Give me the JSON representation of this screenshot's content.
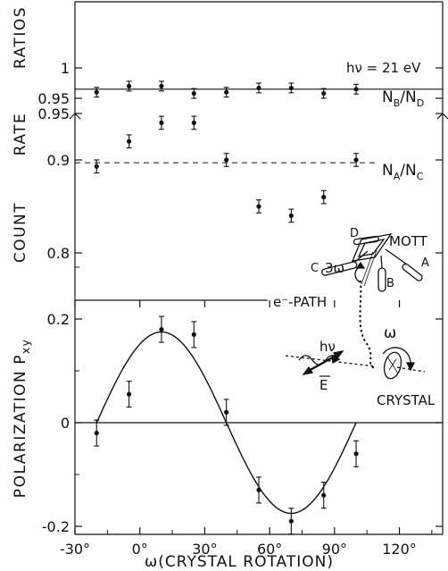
{
  "chart_data": [
    {
      "type": "scatter",
      "panel": "top",
      "ylabel_line1": "RATIOS",
      "ylabel_line2a": "COUNT",
      "ylabel_line2b": "RATE",
      "energy_label": "hν = 21 eV",
      "upper_segment": {
        "ticks": [
          "1",
          "0.95"
        ],
        "series": [
          {
            "name": "N_B/N_D",
            "name_main": "N",
            "name_sub1": "B",
            "name_sep": "/N",
            "name_sub2": "D",
            "reference_line": 0.965,
            "x": [
              -20,
              -5,
              10,
              25,
              40,
              55,
              70,
              85,
              100
            ],
            "y": [
              0.96,
              0.97,
              0.97,
              0.958,
              0.96,
              0.967,
              0.967,
              0.958,
              0.965
            ],
            "err": [
              0.008,
              0.008,
              0.008,
              0.008,
              0.008,
              0.008,
              0.008,
              0.008,
              0.008
            ]
          }
        ]
      },
      "lower_segment": {
        "ticks": [
          "0.95",
          "0.9",
          "0.8"
        ],
        "series": [
          {
            "name": "N_A/N_C",
            "name_main": "N",
            "name_sub1": "A",
            "name_sep": "/N",
            "name_sub2": "C",
            "reference_line": 0.897,
            "x": [
              -20,
              -5,
              10,
              25,
              40,
              55,
              70,
              85,
              100
            ],
            "y": [
              0.893,
              0.92,
              0.94,
              0.94,
              0.9,
              0.85,
              0.84,
              0.86,
              0.9
            ],
            "err": [
              0.007,
              0.007,
              0.007,
              0.007,
              0.007,
              0.007,
              0.007,
              0.007,
              0.007
            ]
          }
        ]
      }
    },
    {
      "type": "scatter",
      "panel": "bottom",
      "ylabel": "POLARIZATION",
      "ylabel_sym": "P",
      "ylabel_sub": "xy",
      "xlabel": "ω(CRYSTAL ROTATION)",
      "xlim": [
        -30,
        140
      ],
      "ylim": [
        -0.29,
        0.37
      ],
      "x_ticks": [
        "-30°",
        "0°",
        "30°",
        "60°",
        "90°",
        "120°"
      ],
      "y_ticks": [
        "0.2",
        "0",
        "-0.2"
      ],
      "series": [
        {
          "name": "P_xy",
          "x": [
            -20,
            -5,
            10,
            25,
            40,
            55,
            70,
            85,
            100
          ],
          "y": [
            -0.02,
            0.055,
            0.18,
            0.17,
            0.02,
            -0.13,
            -0.19,
            -0.14,
            -0.06
          ],
          "err": [
            0.025,
            0.025,
            0.025,
            0.025,
            0.025,
            0.025,
            0.025,
            0.025,
            0.025
          ]
        }
      ],
      "fit_curve": {
        "amplitude": 0.175,
        "center": 10,
        "period": 120,
        "from": -20,
        "to": 100
      }
    }
  ],
  "inset": {
    "mott_label": "MOTT",
    "detector_labels": [
      "A",
      "B",
      "C",
      "D"
    ],
    "rotation_label": "3ω",
    "path_label": "e⁻-PATH",
    "photon_label": "hν",
    "field_label": "E",
    "omega_label": "ω",
    "crystal_label": "CRYSTAL"
  }
}
